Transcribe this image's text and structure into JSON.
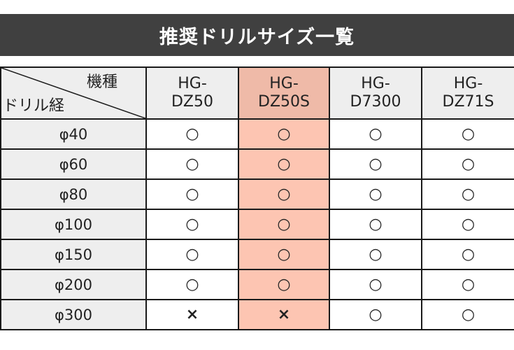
{
  "title": "推奨ドリルサイズ一覧",
  "corner": {
    "top_label": "機種",
    "bottom_label": "ドリル経"
  },
  "models": [
    {
      "line1": "HG-",
      "line2": "DZ50"
    },
    {
      "line1": "HG-",
      "line2": "DZ50S",
      "highlight": true
    },
    {
      "line1": "HG-",
      "line2": "D7300"
    },
    {
      "line1": "HG-",
      "line2": "DZ71S"
    }
  ],
  "rows": [
    {
      "size": "φ40",
      "marks": [
        "○",
        "○",
        "○",
        "○"
      ]
    },
    {
      "size": "φ60",
      "marks": [
        "○",
        "○",
        "○",
        "○"
      ]
    },
    {
      "size": "φ80",
      "marks": [
        "○",
        "○",
        "○",
        "○"
      ]
    },
    {
      "size": "φ100",
      "marks": [
        "○",
        "○",
        "○",
        "○"
      ]
    },
    {
      "size": "φ150",
      "marks": [
        "○",
        "○",
        "○",
        "○"
      ]
    },
    {
      "size": "φ200",
      "marks": [
        "○",
        "○",
        "○",
        "○"
      ]
    },
    {
      "size": "φ300",
      "marks": [
        "×",
        "×",
        "○",
        "○"
      ]
    }
  ],
  "colors": {
    "banner": "#404040",
    "highlight_header": "#efbaa8",
    "highlight_body": "#fdc5b2",
    "label_bg": "#eeeeee"
  }
}
